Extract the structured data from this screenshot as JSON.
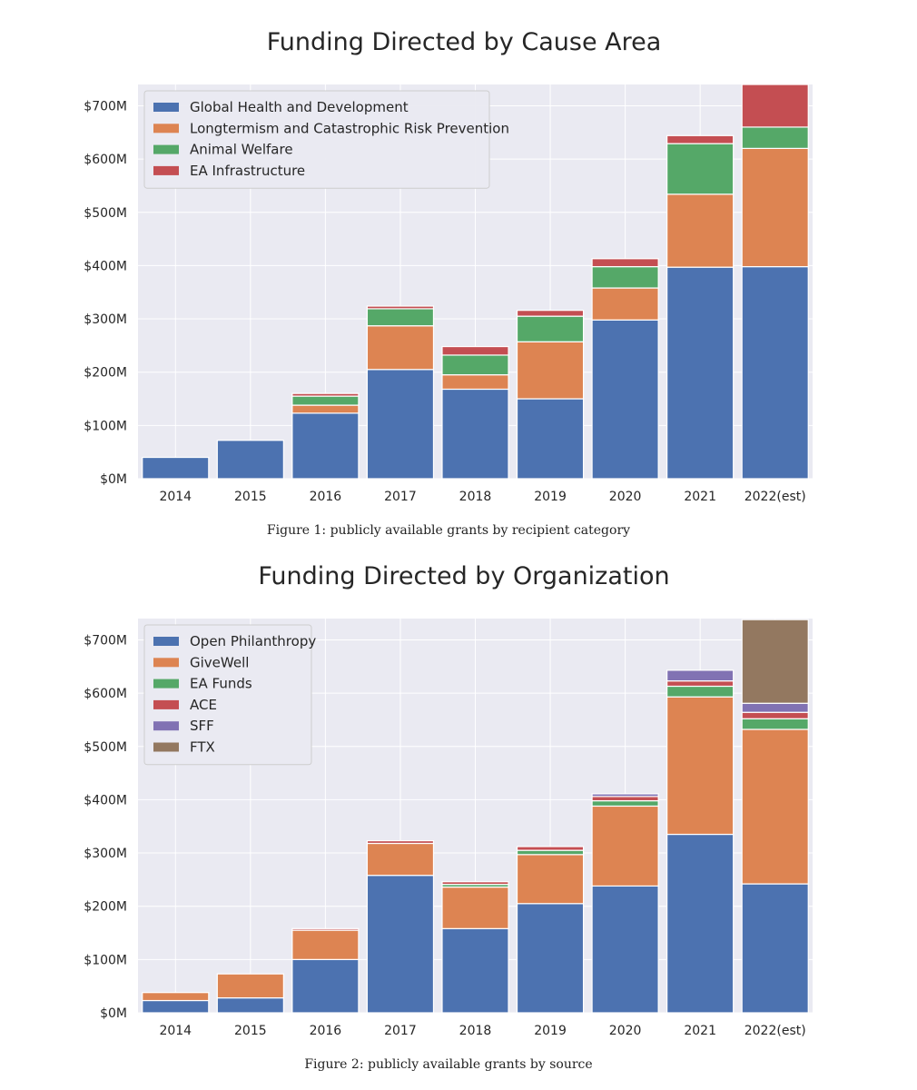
{
  "chart_data": [
    {
      "type": "bar",
      "stacked": true,
      "title": "Funding Directed by Cause Area",
      "caption": "Figure 1: publicly available grants by recipient category",
      "categories": [
        "2014",
        "2015",
        "2016",
        "2017",
        "2018",
        "2019",
        "2020",
        "2021",
        "2022(est)"
      ],
      "ylim": [
        0,
        740
      ],
      "yticks": [
        0,
        100,
        200,
        300,
        400,
        500,
        600,
        700
      ],
      "ytick_labels": [
        "$0M",
        "$100M",
        "$200M",
        "$300M",
        "$400M",
        "$500M",
        "$600M",
        "$700M"
      ],
      "xlabel": "",
      "ylabel": "",
      "grid": true,
      "legend_position": "top-left",
      "series": [
        {
          "name": "Global Health and Development",
          "color": "#4c72b0",
          "values": [
            40,
            72,
            123,
            205,
            168,
            150,
            298,
            397,
            398
          ]
        },
        {
          "name": "Longtermism and Catastrophic Risk Prevention",
          "color": "#dd8452",
          "values": [
            0,
            0,
            15,
            82,
            27,
            107,
            60,
            137,
            222
          ]
        },
        {
          "name": "Animal Welfare",
          "color": "#55a868",
          "values": [
            0,
            0,
            17,
            32,
            37,
            48,
            40,
            95,
            40
          ]
        },
        {
          "name": "EA Infrastructure",
          "color": "#c44e52",
          "values": [
            0,
            0,
            5,
            5,
            16,
            11,
            15,
            15,
            80
          ]
        }
      ]
    },
    {
      "type": "bar",
      "stacked": true,
      "title": "Funding Directed by Organization",
      "caption": "Figure 2: publicly available grants by source",
      "categories": [
        "2014",
        "2015",
        "2016",
        "2017",
        "2018",
        "2019",
        "2020",
        "2021",
        "2022(est)"
      ],
      "ylim": [
        0,
        740
      ],
      "yticks": [
        0,
        100,
        200,
        300,
        400,
        500,
        600,
        700
      ],
      "ytick_labels": [
        "$0M",
        "$100M",
        "$200M",
        "$300M",
        "$400M",
        "$500M",
        "$600M",
        "$700M"
      ],
      "xlabel": "",
      "ylabel": "",
      "grid": true,
      "legend_position": "top-left",
      "series": [
        {
          "name": "Open Philanthropy",
          "color": "#4c72b0",
          "values": [
            23,
            28,
            100,
            258,
            158,
            205,
            238,
            335,
            242
          ]
        },
        {
          "name": "GiveWell",
          "color": "#dd8452",
          "values": [
            15,
            45,
            55,
            60,
            78,
            92,
            150,
            258,
            290
          ]
        },
        {
          "name": "EA Funds",
          "color": "#55a868",
          "values": [
            0,
            0,
            0,
            0,
            5,
            8,
            10,
            20,
            20
          ]
        },
        {
          "name": "ACE",
          "color": "#c44e52",
          "values": [
            0,
            0,
            3,
            5,
            5,
            7,
            8,
            10,
            12
          ]
        },
        {
          "name": "SFF",
          "color": "#8172b3",
          "values": [
            0,
            0,
            0,
            0,
            0,
            0,
            5,
            20,
            17
          ]
        },
        {
          "name": "FTX",
          "color": "#937860",
          "values": [
            0,
            0,
            0,
            0,
            0,
            0,
            0,
            0,
            157
          ]
        }
      ]
    }
  ]
}
